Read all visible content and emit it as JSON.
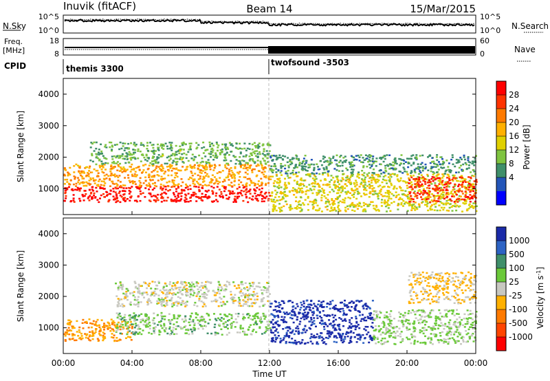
{
  "header": {
    "station": "Inuvik (fitACF)",
    "beam": "Beam 14",
    "date": "15/Mar/2015"
  },
  "top_panels": {
    "nsky_label": "N.Sky",
    "nsky_ticks": [
      "10^5",
      "10^0"
    ],
    "nsearch_label": "N.Search",
    "nsearch_ticks": [
      "10^5",
      "10^0"
    ],
    "freq_label_line1": "Freq.",
    "freq_label_line2": "[MHz]",
    "freq_ticks": [
      "18",
      "8"
    ],
    "nave_label": "Nave",
    "nave_ticks": [
      "60",
      "0"
    ],
    "cpid_label": "CPID",
    "cpid_segments": [
      {
        "name": "themis 3300",
        "start_hour": 0,
        "end_hour": 12
      },
      {
        "name": "twofsound -3503",
        "start_hour": 12,
        "end_hour": 24
      }
    ]
  },
  "time_axis": {
    "label": "Time UT",
    "ticks": [
      "00:00",
      "04:00",
      "08:00",
      "12:00",
      "16:00",
      "20:00",
      "00:00"
    ]
  },
  "power_panel": {
    "ylabel": "Slant Range [km]",
    "yticks": [
      "4000",
      "3000",
      "2000",
      "1000"
    ],
    "cbar_label": "Power [dB]",
    "cbar_ticks": [
      "28",
      "24",
      "20",
      "16",
      "12",
      "8",
      "4"
    ],
    "cbar_colors": [
      "#ff0000",
      "#ff3300",
      "#ff7a00",
      "#ffb000",
      "#e0d000",
      "#7fc440",
      "#3f8f6a",
      "#2355b8",
      "#0000ff"
    ]
  },
  "velocity_panel": {
    "ylabel": "Slant Range [km]",
    "yticks": [
      "4000",
      "3000",
      "2000",
      "1000"
    ],
    "cbar_label": "Velocity [m s",
    "cbar_label_sup": "-1",
    "cbar_label_end": "]",
    "cbar_ticks": [
      "1000",
      "500",
      "100",
      "25",
      "-25",
      "-100",
      "-500",
      "-1000"
    ],
    "cbar_colors": [
      "#1a2aa8",
      "#2d63c4",
      "#3f8f6a",
      "#6bc93a",
      "#c8c8c0",
      "#ffb000",
      "#ff7a00",
      "#ff4500",
      "#ff0000"
    ]
  },
  "chart_data": [
    {
      "type": "heatmap",
      "title": "Power",
      "xlabel": "Time UT",
      "ylabel": "Slant Range [km]",
      "xlim": [
        0,
        24
      ],
      "ylim": [
        180,
        4500
      ],
      "colorbar": {
        "label": "Power [dB]",
        "ticks": [
          4,
          8,
          12,
          16,
          20,
          24,
          28
        ]
      },
      "bands": [
        {
          "x": [
            0.0,
            12.0
          ],
          "y": [
            600,
            1100
          ],
          "value": 28
        },
        {
          "x": [
            0.0,
            12.0
          ],
          "y": [
            1100,
            1800
          ],
          "value": 20
        },
        {
          "x": [
            1.5,
            12.0
          ],
          "y": [
            1800,
            2500
          ],
          "value": 12
        },
        {
          "x": [
            12.0,
            24.0
          ],
          "y": [
            300,
            1500
          ],
          "value": 16
        },
        {
          "x": [
            12.0,
            24.0
          ],
          "y": [
            1500,
            2100
          ],
          "value": 10
        },
        {
          "x": [
            20.0,
            24.0
          ],
          "y": [
            600,
            1400
          ],
          "value": 26
        }
      ]
    },
    {
      "type": "heatmap",
      "title": "Velocity",
      "xlabel": "Time UT",
      "ylabel": "Slant Range [km]",
      "xlim": [
        0,
        24
      ],
      "ylim": [
        180,
        4500
      ],
      "colorbar": {
        "label": "Velocity [m s-1]",
        "ticks": [
          -1000,
          -500,
          -100,
          -25,
          25,
          100,
          500,
          1000
        ]
      },
      "bands": [
        {
          "x": [
            0.0,
            4.0
          ],
          "y": [
            600,
            1300
          ],
          "value": -300
        },
        {
          "x": [
            3.0,
            12.0
          ],
          "y": [
            800,
            1500
          ],
          "value": 200
        },
        {
          "x": [
            3.0,
            12.0
          ],
          "y": [
            1700,
            2500
          ],
          "value": 0
        },
        {
          "x": [
            12.0,
            18.0
          ],
          "y": [
            500,
            1900
          ],
          "value": 900
        },
        {
          "x": [
            18.0,
            24.0
          ],
          "y": [
            500,
            1600
          ],
          "value": 150
        },
        {
          "x": [
            20.0,
            24.0
          ],
          "y": [
            1800,
            2800
          ],
          "value": -150
        }
      ]
    }
  ]
}
